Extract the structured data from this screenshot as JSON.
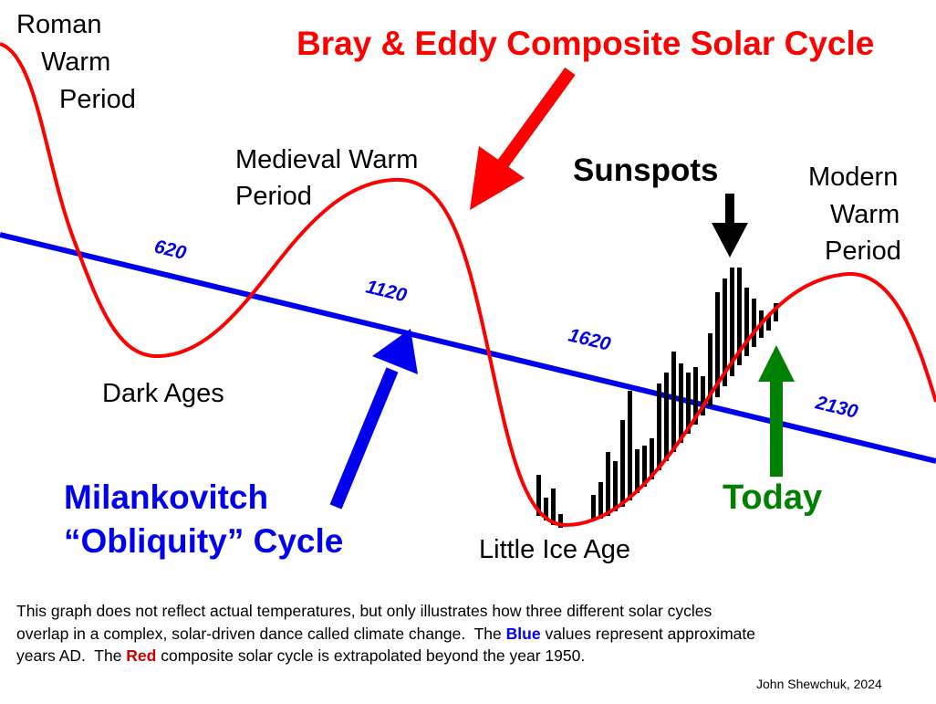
{
  "title": "Bray & Eddy Composite Solar Cycle",
  "labels": {
    "roman_warm_period": [
      "Roman",
      "Warm",
      "Period"
    ],
    "medieval_warm_period": [
      "Medieval Warm",
      "Period"
    ],
    "dark_ages": "Dark Ages",
    "sunspots": "Sunspots",
    "modern_warm_period": [
      "Modern",
      "Warm",
      "Period"
    ],
    "little_ice_age": "Little Ice Age",
    "today": "Today",
    "milankovitch": [
      "Milankovitch",
      "“Obliquity” Cycle"
    ]
  },
  "years": [
    "620",
    "1120",
    "1620",
    "2130"
  ],
  "caption": {
    "line1": "This graph does not reflect actual temperatures, but only illustrates how three different solar cycles",
    "line2a": "overlap in a complex, solar-driven dance called climate change.  The ",
    "blue": "Blue",
    "line2b": " values represent approximate",
    "line3a": "years AD.  The ",
    "red": "Red",
    "line3b": " composite solar cycle is extrapolated beyond the year 1950."
  },
  "credit": "John Shewchuk, 2024"
}
